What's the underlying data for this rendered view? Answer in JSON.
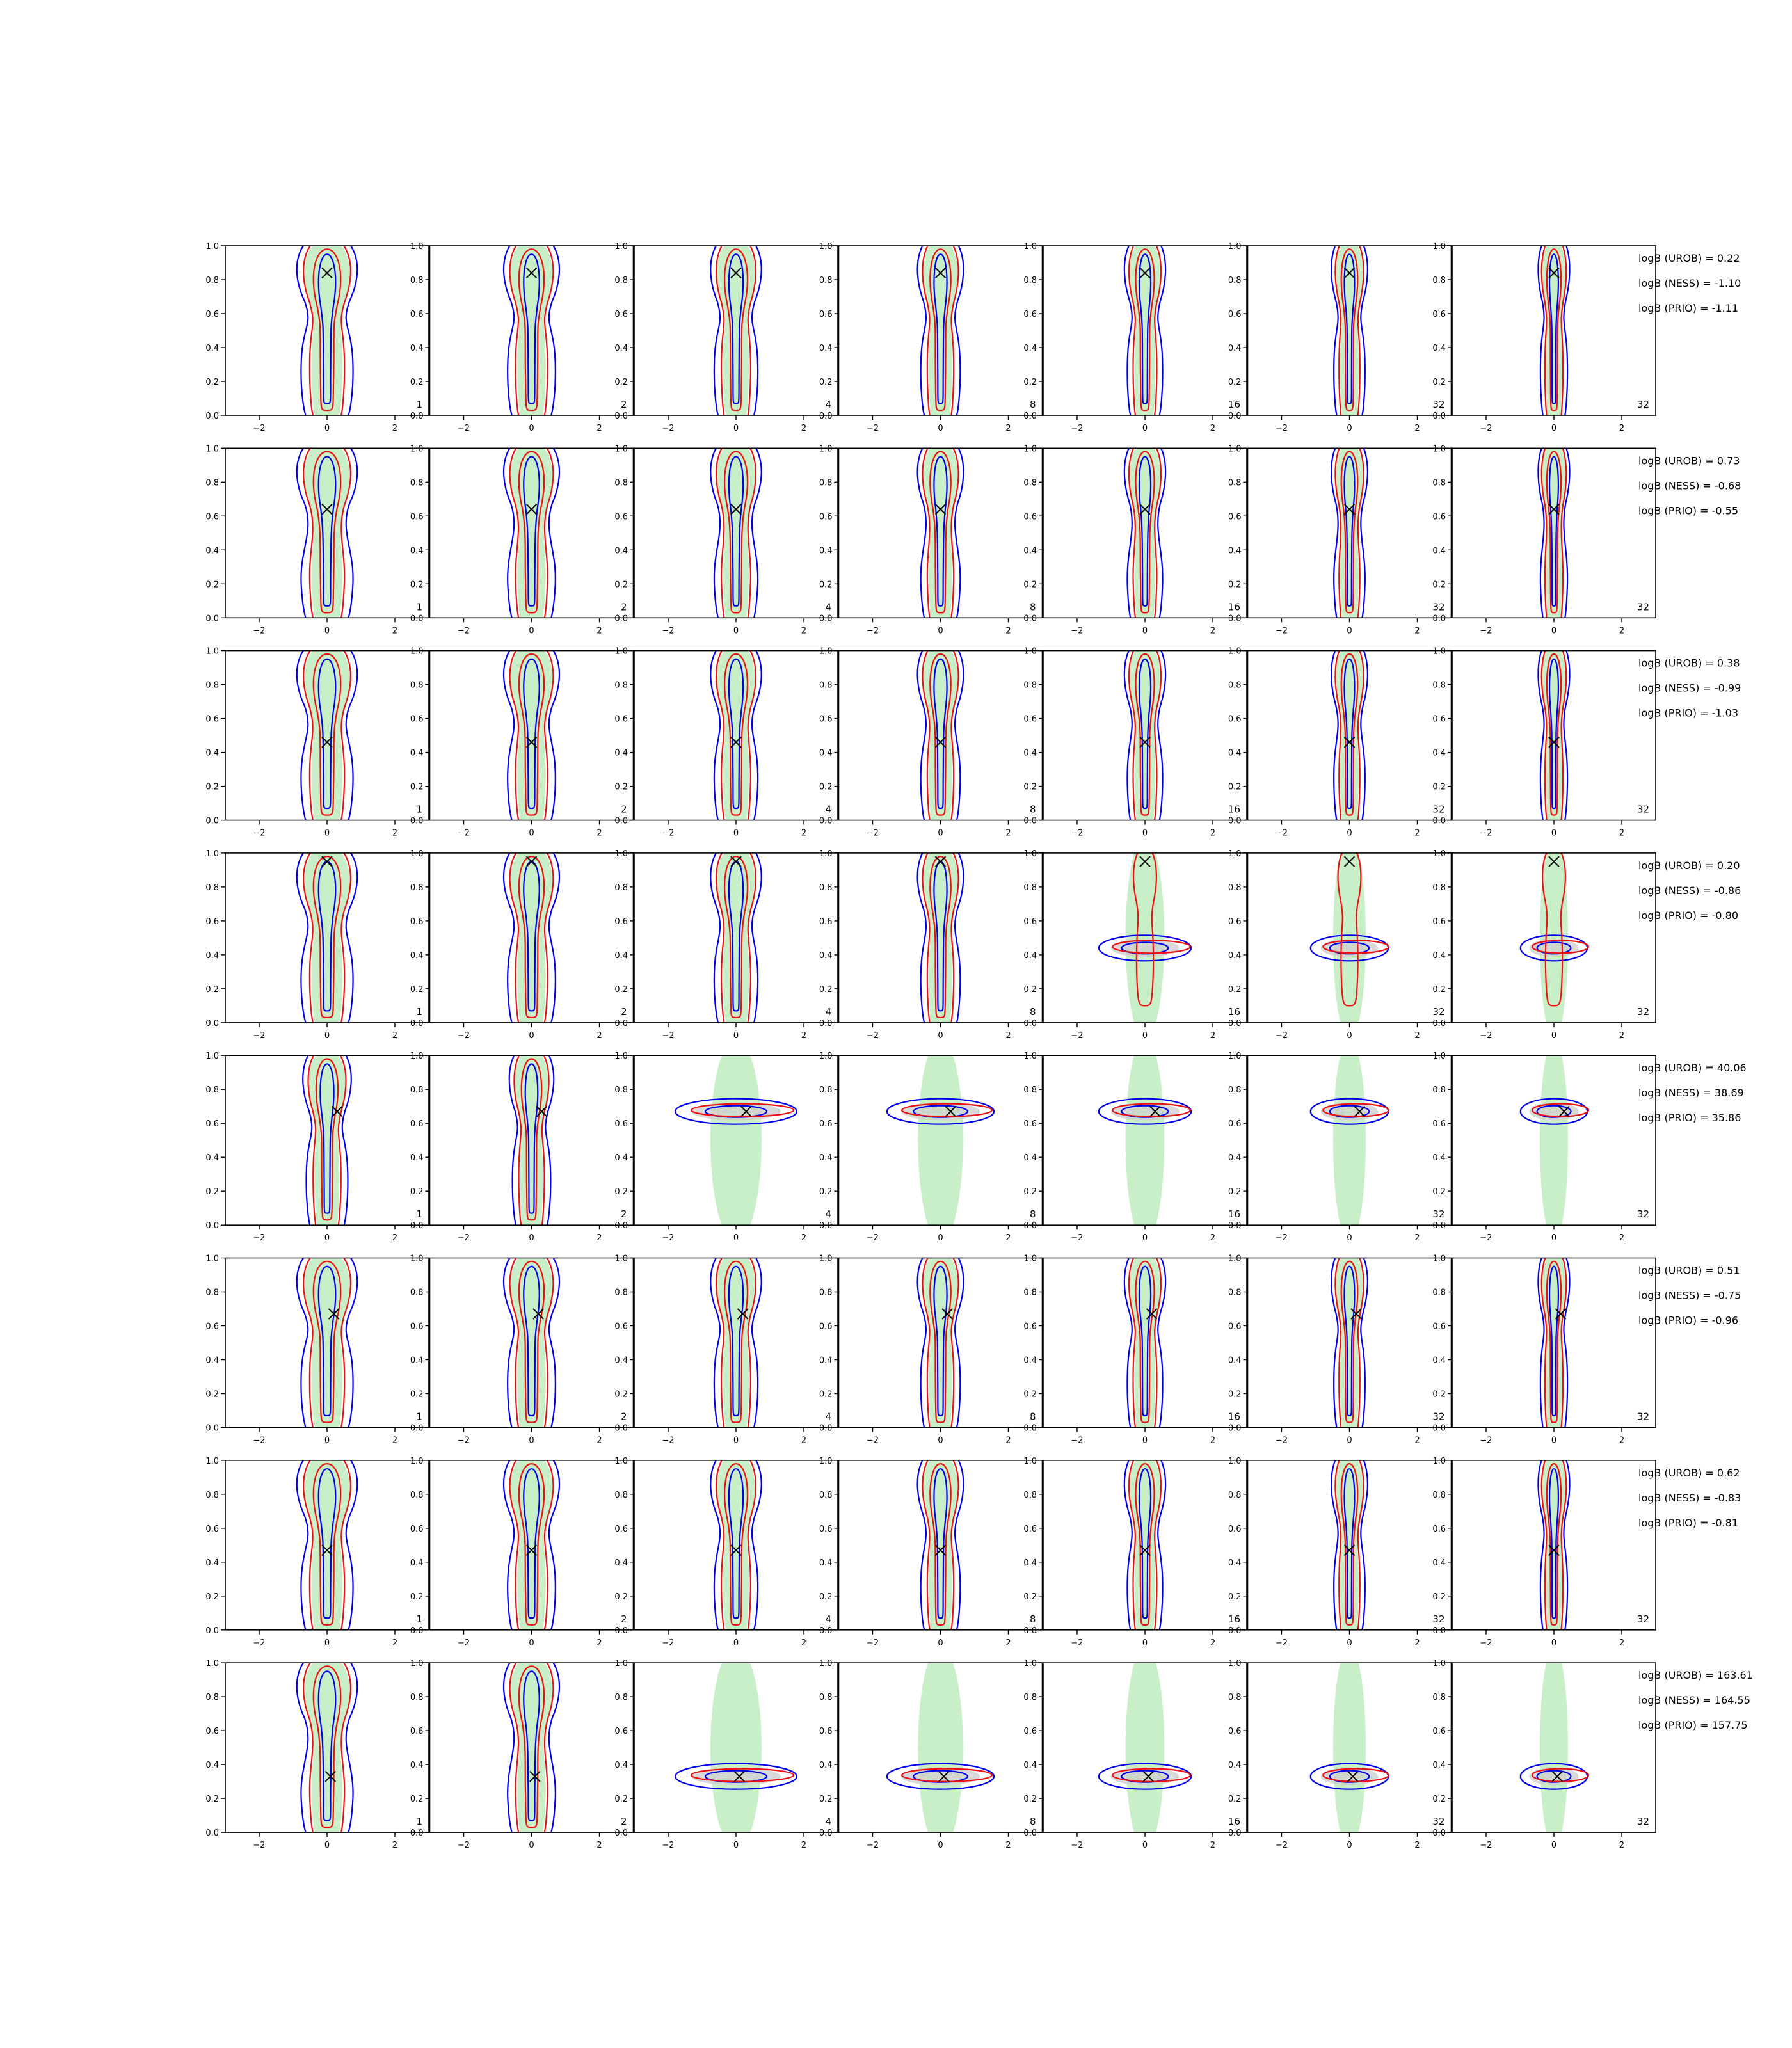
{
  "chart_data": {
    "type": "contour-grid",
    "xlim": [
      -3,
      3
    ],
    "ylim": [
      0,
      1
    ],
    "x_ticks": [
      "−2",
      "0",
      "2"
    ],
    "y_ticks": [
      "0.0",
      "0.2",
      "0.4",
      "0.6",
      "0.8",
      "1.0"
    ],
    "panel_counts": [
      "1",
      "2",
      "4",
      "8",
      "16",
      "32",
      "32"
    ],
    "colors": {
      "green_fill": "#c8efc8",
      "gray_fill": "#cfcfcf",
      "blue_contour": "#0000ee",
      "red_contour": "#ee1111",
      "marker": "#000000"
    },
    "rows": [
      {
        "truth_x": 0.0,
        "truth_y": 0.84,
        "center_y": 0.55,
        "spread": 0.5,
        "logB": [
          "logB (UROB) = 0.22",
          "logB (NESS) = -1.10",
          "logB (PRIO) = -1.11"
        ]
      },
      {
        "truth_x": 0.0,
        "truth_y": 0.64,
        "center_y": 0.4,
        "spread": 0.5,
        "logB": [
          "logB (UROB) = 0.73",
          "logB (NESS) = -0.68",
          "logB (PRIO) = -0.55"
        ]
      },
      {
        "truth_x": 0.0,
        "truth_y": 0.46,
        "center_y": 0.48,
        "spread": 0.5,
        "logB": [
          "logB (UROB) = 0.38",
          "logB (NESS) = -0.99",
          "logB (PRIO) = -1.03"
        ]
      },
      {
        "truth_x": 0.0,
        "truth_y": 0.95,
        "center_y": 0.5,
        "spread": 0.5,
        "logB": [
          "logB (UROB) = 0.20",
          "logB (NESS) = -0.86",
          "logB (PRIO) = -0.80"
        ]
      },
      {
        "truth_x": 0.3,
        "truth_y": 0.67,
        "center_y": 0.55,
        "spread": 0.4,
        "logB": [
          "logB (UROB) = 40.06",
          "logB (NESS) = 38.69",
          "logB (PRIO) = 35.86"
        ]
      },
      {
        "truth_x": 0.2,
        "truth_y": 0.67,
        "center_y": 0.55,
        "spread": 0.5,
        "logB": [
          "logB (UROB) = 0.51",
          "logB (NESS) = -0.75",
          "logB (PRIO) = -0.96"
        ]
      },
      {
        "truth_x": 0.0,
        "truth_y": 0.47,
        "center_y": 0.5,
        "spread": 0.5,
        "logB": [
          "logB (UROB) = 0.62",
          "logB (NESS) = -0.83",
          "logB (PRIO) = -0.81"
        ]
      },
      {
        "truth_x": 0.1,
        "truth_y": 0.33,
        "center_y": 0.4,
        "spread": 0.5,
        "logB": [
          "logB (UROB) = 163.61",
          "logB (NESS) = 164.55",
          "logB (PRIO) = 157.75"
        ]
      }
    ]
  }
}
